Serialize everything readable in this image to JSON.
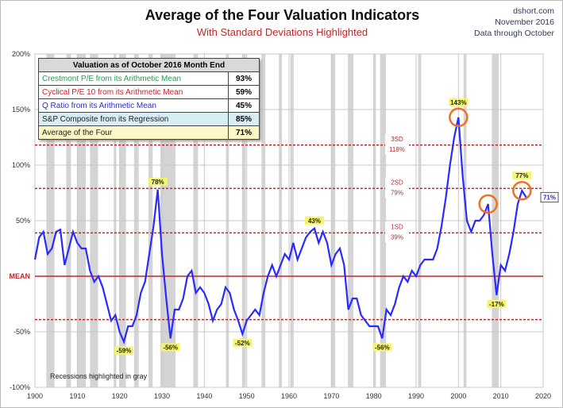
{
  "header": {
    "title": "Average of the Four Valuation Indicators",
    "subtitle": "With Standard Deviations Highlighted",
    "source": "dshort.com",
    "date": "November 2016",
    "data_note": "Data through October"
  },
  "table": {
    "title": "Valuation as of October 2016 Month End",
    "rows": [
      {
        "label": "Crestmont P/E from its Arithmetic Mean",
        "value": "93%",
        "color": "#1aa34a",
        "bg": "#ffffff"
      },
      {
        "label": "Cyclical P/E 10 from its Arithmetic Mean",
        "value": "59%",
        "color": "#c0282d",
        "bg": "#ffffff"
      },
      {
        "label": "Q Ratio from its Arithmetic Mean",
        "value": "45%",
        "color": "#2a2adf",
        "bg": "#ffffff"
      },
      {
        "label": "S&P Composite from its Regression",
        "value": "85%",
        "color": "#222222",
        "bg": "#d8eef5"
      },
      {
        "label": "Average of the Four",
        "value": "71%",
        "color": "#222222",
        "bg": "#fdf7c8"
      }
    ]
  },
  "chart_data": {
    "type": "line",
    "title": "Average of the Four Valuation Indicators",
    "xlim": [
      1900,
      2020
    ],
    "ylim": [
      -100,
      200
    ],
    "x_ticks": [
      "1900",
      "1910",
      "1920",
      "1930",
      "1940",
      "1950",
      "1960",
      "1970",
      "1980",
      "1990",
      "2000",
      "2010",
      "2020"
    ],
    "y_ticks": [
      "200%",
      "150%",
      "100%",
      "50%",
      "MEAN",
      "-50%",
      "-100%"
    ],
    "reference_lines": [
      {
        "label": "MEAN",
        "value": 0
      },
      {
        "label": "1SD",
        "value_label": "39%",
        "value": 39
      },
      {
        "label": "2SD",
        "value_label": "79%",
        "value": 79
      },
      {
        "label": "3SD",
        "value_label": "118%",
        "value": 118
      },
      {
        "label": "",
        "value": -39
      }
    ],
    "recessions": [
      [
        1902.7,
        1904.6
      ],
      [
        1907.4,
        1908.5
      ],
      [
        1910,
        1912
      ],
      [
        1913,
        1914.9
      ],
      [
        1918.6,
        1919.2
      ],
      [
        1920,
        1921.5
      ],
      [
        1923.4,
        1924.5
      ],
      [
        1926.8,
        1927.8
      ],
      [
        1929.6,
        1933.2
      ],
      [
        1937.4,
        1938.5
      ],
      [
        1945.1,
        1945.8
      ],
      [
        1948.9,
        1949.8
      ],
      [
        1953.5,
        1954.4
      ],
      [
        1957.6,
        1958.3
      ],
      [
        1960.3,
        1961.1
      ],
      [
        1969.9,
        1970.9
      ],
      [
        1973.9,
        1975.2
      ],
      [
        1980,
        1980.5
      ],
      [
        1981.5,
        1982.9
      ],
      [
        1990.5,
        1991.2
      ],
      [
        2001.2,
        2001.9
      ],
      [
        2007.9,
        2009.5
      ]
    ],
    "recession_note": "Recessions highlighted in gray",
    "series": [
      {
        "name": "Average of the Four",
        "color": "#2a2aff",
        "x": [
          1900,
          1901,
          1902,
          1903,
          1904,
          1905,
          1906,
          1907,
          1908,
          1909,
          1910,
          1911,
          1912,
          1913,
          1914,
          1915,
          1916,
          1917,
          1918,
          1919,
          1920,
          1921,
          1922,
          1923,
          1924,
          1925,
          1926,
          1927,
          1928,
          1929,
          1930,
          1931,
          1932,
          1933,
          1934,
          1935,
          1936,
          1937,
          1938,
          1939,
          1940,
          1941,
          1942,
          1943,
          1944,
          1945,
          1946,
          1947,
          1948,
          1949,
          1950,
          1951,
          1952,
          1953,
          1954,
          1955,
          1956,
          1957,
          1958,
          1959,
          1960,
          1961,
          1962,
          1963,
          1964,
          1965,
          1966,
          1967,
          1968,
          1969,
          1970,
          1971,
          1972,
          1973,
          1974,
          1975,
          1976,
          1977,
          1978,
          1979,
          1980,
          1981,
          1982,
          1983,
          1984,
          1985,
          1986,
          1987,
          1988,
          1989,
          1990,
          1991,
          1992,
          1993,
          1994,
          1995,
          1996,
          1997,
          1998,
          1999,
          2000,
          2001,
          2002,
          2003,
          2004,
          2005,
          2006,
          2007,
          2008,
          2009,
          2010,
          2011,
          2012,
          2013,
          2014,
          2015,
          2016
        ],
        "values": [
          15,
          35,
          40,
          20,
          25,
          40,
          42,
          10,
          25,
          40,
          30,
          25,
          25,
          5,
          -5,
          0,
          -10,
          -25,
          -40,
          -35,
          -50,
          -59,
          -45,
          -45,
          -35,
          -15,
          -5,
          20,
          45,
          78,
          20,
          -20,
          -56,
          -30,
          -30,
          -20,
          0,
          5,
          -15,
          -10,
          -15,
          -25,
          -40,
          -30,
          -25,
          -10,
          -15,
          -30,
          -40,
          -52,
          -40,
          -35,
          -30,
          -35,
          -15,
          0,
          10,
          0,
          10,
          20,
          15,
          30,
          15,
          25,
          35,
          40,
          43,
          30,
          40,
          30,
          10,
          20,
          25,
          10,
          -30,
          -20,
          -20,
          -35,
          -40,
          -45,
          -45,
          -45,
          -56,
          -30,
          -35,
          -25,
          -10,
          0,
          -5,
          5,
          0,
          10,
          15,
          15,
          15,
          25,
          45,
          70,
          100,
          125,
          143,
          90,
          50,
          40,
          50,
          50,
          55,
          65,
          20,
          -17,
          10,
          5,
          20,
          40,
          65,
          77,
          71
        ]
      }
    ],
    "annotations": [
      {
        "year": 1921,
        "text": "-59%"
      },
      {
        "year": 1929,
        "text": "78%"
      },
      {
        "year": 1932,
        "text": "-56%"
      },
      {
        "year": 1949,
        "text": "-52%"
      },
      {
        "year": 1966,
        "text": "43%"
      },
      {
        "year": 1982,
        "text": "-56%"
      },
      {
        "year": 2000,
        "text": "143%",
        "circle": true
      },
      {
        "year": 2009,
        "text": "-17%"
      },
      {
        "year": 2015,
        "text": "77%",
        "circle": true
      },
      {
        "year": 2007,
        "text": "",
        "circle": true
      }
    ],
    "current_label": "71%"
  }
}
